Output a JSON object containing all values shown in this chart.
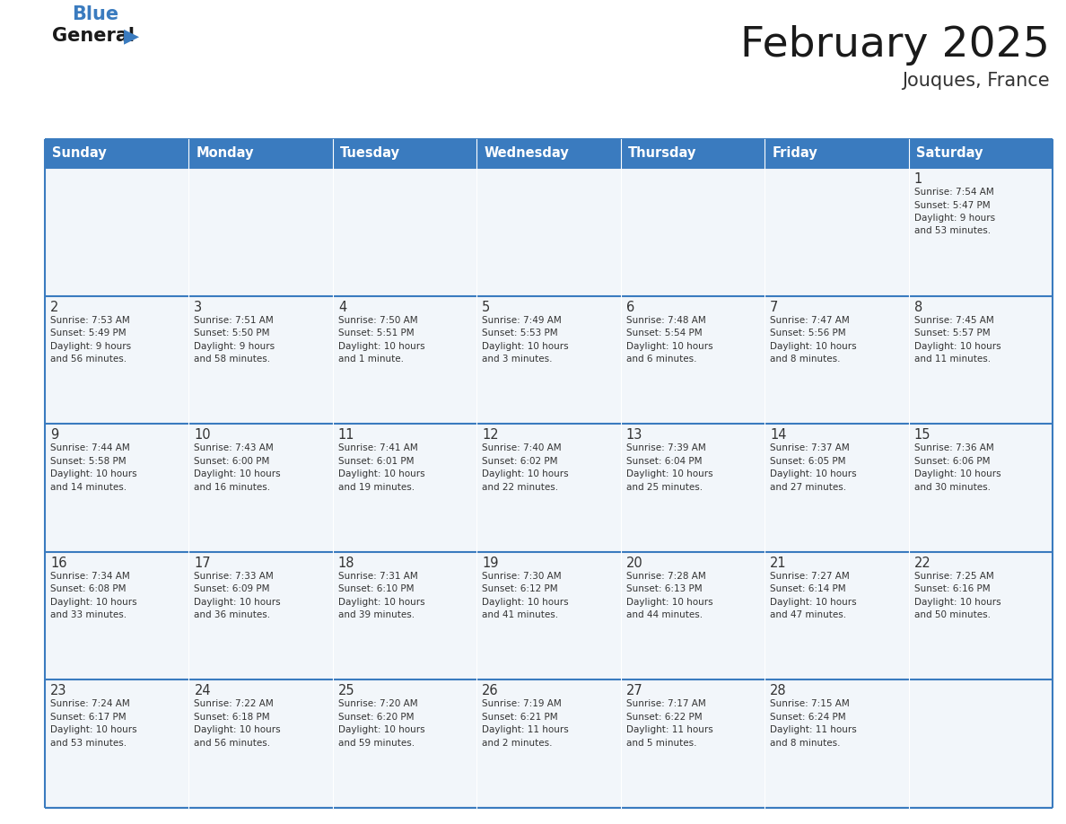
{
  "title": "February 2025",
  "subtitle": "Jouques, France",
  "days_of_week": [
    "Sunday",
    "Monday",
    "Tuesday",
    "Wednesday",
    "Thursday",
    "Friday",
    "Saturday"
  ],
  "header_bg": "#3a7bbf",
  "header_text": "#ffffff",
  "cell_bg": "#f2f6fa",
  "border_color": "#3a7bbf",
  "day_number_color": "#333333",
  "info_text_color": "#333333",
  "title_color": "#1a1a1a",
  "subtitle_color": "#333333",
  "weeks": [
    [
      {
        "day": null,
        "info": null
      },
      {
        "day": null,
        "info": null
      },
      {
        "day": null,
        "info": null
      },
      {
        "day": null,
        "info": null
      },
      {
        "day": null,
        "info": null
      },
      {
        "day": null,
        "info": null
      },
      {
        "day": 1,
        "info": "Sunrise: 7:54 AM\nSunset: 5:47 PM\nDaylight: 9 hours\nand 53 minutes."
      }
    ],
    [
      {
        "day": 2,
        "info": "Sunrise: 7:53 AM\nSunset: 5:49 PM\nDaylight: 9 hours\nand 56 minutes."
      },
      {
        "day": 3,
        "info": "Sunrise: 7:51 AM\nSunset: 5:50 PM\nDaylight: 9 hours\nand 58 minutes."
      },
      {
        "day": 4,
        "info": "Sunrise: 7:50 AM\nSunset: 5:51 PM\nDaylight: 10 hours\nand 1 minute."
      },
      {
        "day": 5,
        "info": "Sunrise: 7:49 AM\nSunset: 5:53 PM\nDaylight: 10 hours\nand 3 minutes."
      },
      {
        "day": 6,
        "info": "Sunrise: 7:48 AM\nSunset: 5:54 PM\nDaylight: 10 hours\nand 6 minutes."
      },
      {
        "day": 7,
        "info": "Sunrise: 7:47 AM\nSunset: 5:56 PM\nDaylight: 10 hours\nand 8 minutes."
      },
      {
        "day": 8,
        "info": "Sunrise: 7:45 AM\nSunset: 5:57 PM\nDaylight: 10 hours\nand 11 minutes."
      }
    ],
    [
      {
        "day": 9,
        "info": "Sunrise: 7:44 AM\nSunset: 5:58 PM\nDaylight: 10 hours\nand 14 minutes."
      },
      {
        "day": 10,
        "info": "Sunrise: 7:43 AM\nSunset: 6:00 PM\nDaylight: 10 hours\nand 16 minutes."
      },
      {
        "day": 11,
        "info": "Sunrise: 7:41 AM\nSunset: 6:01 PM\nDaylight: 10 hours\nand 19 minutes."
      },
      {
        "day": 12,
        "info": "Sunrise: 7:40 AM\nSunset: 6:02 PM\nDaylight: 10 hours\nand 22 minutes."
      },
      {
        "day": 13,
        "info": "Sunrise: 7:39 AM\nSunset: 6:04 PM\nDaylight: 10 hours\nand 25 minutes."
      },
      {
        "day": 14,
        "info": "Sunrise: 7:37 AM\nSunset: 6:05 PM\nDaylight: 10 hours\nand 27 minutes."
      },
      {
        "day": 15,
        "info": "Sunrise: 7:36 AM\nSunset: 6:06 PM\nDaylight: 10 hours\nand 30 minutes."
      }
    ],
    [
      {
        "day": 16,
        "info": "Sunrise: 7:34 AM\nSunset: 6:08 PM\nDaylight: 10 hours\nand 33 minutes."
      },
      {
        "day": 17,
        "info": "Sunrise: 7:33 AM\nSunset: 6:09 PM\nDaylight: 10 hours\nand 36 minutes."
      },
      {
        "day": 18,
        "info": "Sunrise: 7:31 AM\nSunset: 6:10 PM\nDaylight: 10 hours\nand 39 minutes."
      },
      {
        "day": 19,
        "info": "Sunrise: 7:30 AM\nSunset: 6:12 PM\nDaylight: 10 hours\nand 41 minutes."
      },
      {
        "day": 20,
        "info": "Sunrise: 7:28 AM\nSunset: 6:13 PM\nDaylight: 10 hours\nand 44 minutes."
      },
      {
        "day": 21,
        "info": "Sunrise: 7:27 AM\nSunset: 6:14 PM\nDaylight: 10 hours\nand 47 minutes."
      },
      {
        "day": 22,
        "info": "Sunrise: 7:25 AM\nSunset: 6:16 PM\nDaylight: 10 hours\nand 50 minutes."
      }
    ],
    [
      {
        "day": 23,
        "info": "Sunrise: 7:24 AM\nSunset: 6:17 PM\nDaylight: 10 hours\nand 53 minutes."
      },
      {
        "day": 24,
        "info": "Sunrise: 7:22 AM\nSunset: 6:18 PM\nDaylight: 10 hours\nand 56 minutes."
      },
      {
        "day": 25,
        "info": "Sunrise: 7:20 AM\nSunset: 6:20 PM\nDaylight: 10 hours\nand 59 minutes."
      },
      {
        "day": 26,
        "info": "Sunrise: 7:19 AM\nSunset: 6:21 PM\nDaylight: 11 hours\nand 2 minutes."
      },
      {
        "day": 27,
        "info": "Sunrise: 7:17 AM\nSunset: 6:22 PM\nDaylight: 11 hours\nand 5 minutes."
      },
      {
        "day": 28,
        "info": "Sunrise: 7:15 AM\nSunset: 6:24 PM\nDaylight: 11 hours\nand 8 minutes."
      },
      {
        "day": null,
        "info": null
      }
    ]
  ]
}
